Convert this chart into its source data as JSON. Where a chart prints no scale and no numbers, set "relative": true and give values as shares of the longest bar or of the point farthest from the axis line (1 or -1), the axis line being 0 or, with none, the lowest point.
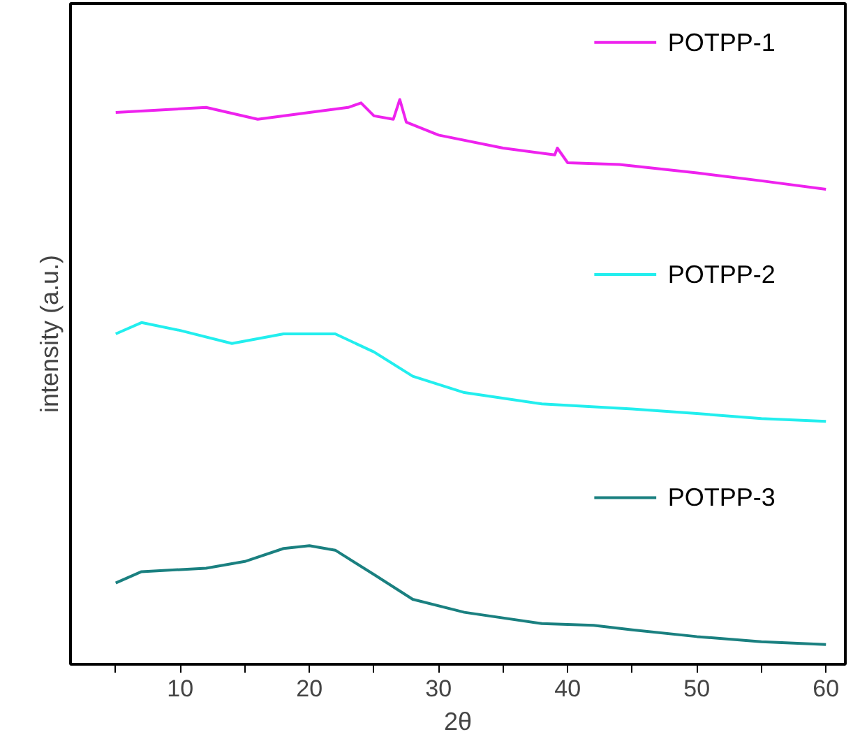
{
  "chart_data": {
    "type": "line",
    "xlabel": "2θ",
    "ylabel": "intensity (a.u.)",
    "relative": true,
    "xlim": [
      1.5,
      61.5
    ],
    "xticks": [
      {
        "value": 5,
        "label": null
      },
      10,
      {
        "value": 15,
        "label": null
      },
      20,
      {
        "value": 25,
        "label": null
      },
      30,
      {
        "value": 35,
        "label": null
      },
      40,
      {
        "value": 45,
        "label": null
      },
      50,
      {
        "value": 55,
        "label": null
      },
      60
    ],
    "grid": false,
    "legend": "right",
    "marker": "none",
    "line_style": "solid",
    "series": [
      {
        "name": "POTPP-1",
        "color": "#ee22ee",
        "x": [
          5,
          12,
          16,
          20,
          23,
          24,
          25,
          26.5,
          27,
          27.5,
          30,
          35,
          39,
          39.2,
          40,
          44,
          50,
          55,
          60
        ],
        "values": [
          0.977,
          0.986,
          0.965,
          0.977,
          0.986,
          0.994,
          0.971,
          0.965,
          1,
          0.96,
          0.937,
          0.914,
          0.902,
          0.914,
          0.888,
          0.885,
          0.87,
          0.856,
          0.841
        ]
      },
      {
        "name": "POTPP-2",
        "color": "#22eeee",
        "x": [
          5,
          7,
          10,
          14,
          18,
          22,
          25,
          28,
          32,
          38,
          45,
          50,
          55,
          60
        ],
        "values": [
          0.585,
          0.605,
          0.591,
          0.568,
          0.585,
          0.585,
          0.553,
          0.51,
          0.481,
          0.461,
          0.452,
          0.444,
          0.435,
          0.43
        ]
      },
      {
        "name": "POTPP-3",
        "color": "#1a8080",
        "x": [
          5,
          7,
          12,
          15,
          18,
          20,
          22,
          25,
          28,
          32,
          38,
          42,
          45,
          50,
          55,
          60
        ],
        "values": [
          0.144,
          0.164,
          0.17,
          0.182,
          0.205,
          0.21,
          0.202,
          0.159,
          0.115,
          0.092,
          0.072,
          0.069,
          0.061,
          0.049,
          0.04,
          0.035
        ]
      }
    ]
  }
}
